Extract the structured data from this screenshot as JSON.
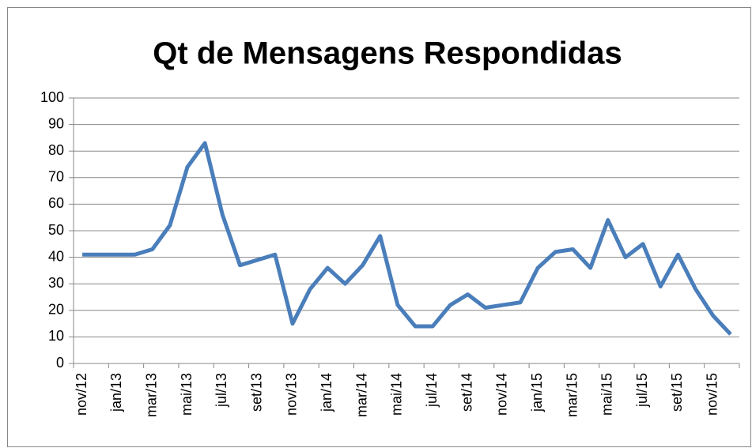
{
  "chart_data": {
    "type": "line",
    "title": "Qt de Mensagens Respondidas",
    "categories": [
      "nov/12",
      null,
      "jan/13",
      null,
      "mar/13",
      null,
      "mai/13",
      null,
      "jul/13",
      null,
      "set/13",
      null,
      "nov/13",
      null,
      "jan/14",
      null,
      "mar/14",
      null,
      "mai/14",
      null,
      "jul/14",
      null,
      "set/14",
      null,
      "nov/14",
      null,
      "jan/15",
      null,
      "mar/15",
      null,
      "mai/15",
      null,
      "jul/15",
      null,
      "set/15",
      null,
      "nov/15",
      null
    ],
    "series": [
      {
        "name": "Qt de Mensagens Respondidas",
        "color": "#4a7ebb",
        "values": [
          41,
          41,
          41,
          41,
          43,
          52,
          74,
          83,
          56,
          37,
          39,
          41,
          15,
          28,
          36,
          30,
          37,
          48,
          22,
          14,
          14,
          22,
          26,
          21,
          22,
          23,
          36,
          42,
          43,
          36,
          54,
          40,
          45,
          29,
          41,
          28,
          18,
          11
        ]
      }
    ],
    "ylim": [
      0,
      100
    ],
    "yticks": [
      0,
      10,
      20,
      30,
      40,
      50,
      60,
      70,
      80,
      90,
      100
    ],
    "grid": true
  }
}
